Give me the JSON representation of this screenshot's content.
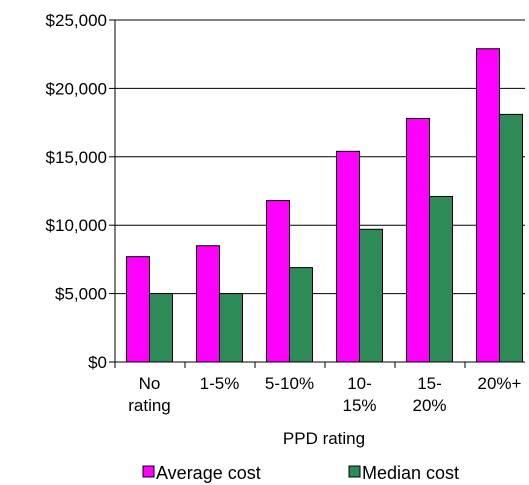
{
  "chart_data": {
    "type": "bar",
    "categories": [
      [
        "No",
        "rating"
      ],
      [
        "1-5%"
      ],
      [
        "5-10%"
      ],
      [
        "10-",
        "15%"
      ],
      [
        "15-",
        "20%"
      ],
      [
        "20%+"
      ]
    ],
    "series": [
      {
        "name": "Average cost",
        "color": "#ff00ff",
        "values": [
          7700,
          8500,
          11800,
          15400,
          17800,
          22900
        ]
      },
      {
        "name": "Median cost",
        "color": "#2e8b57",
        "values": [
          5000,
          5000,
          6900,
          9700,
          12100,
          18100
        ]
      }
    ],
    "xlabel": "PPD rating",
    "ylabel": "",
    "ylim": [
      0,
      25000
    ],
    "yticks": [
      0,
      5000,
      10000,
      15000,
      20000,
      25000
    ],
    "ytick_labels": [
      "$0",
      "$5,000",
      "$10,000",
      "$15,000",
      "$20,000",
      "$25,000"
    ],
    "grid": true,
    "legend_position": "bottom"
  }
}
